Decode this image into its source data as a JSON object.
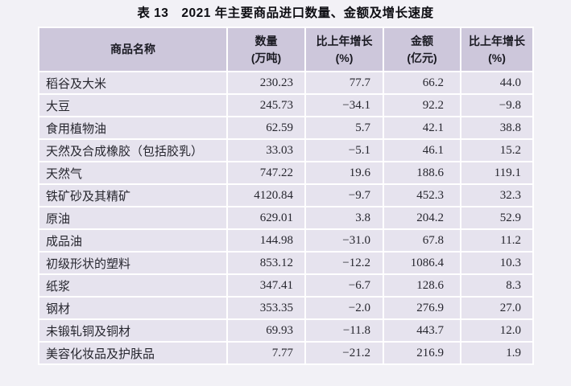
{
  "title": "表 13　2021 年主要商品进口数量、金额及增长速度",
  "colors": {
    "page_bg": "#f2f1f6",
    "header_bg": "#cdc7db",
    "row_bg": "#e6e3ee",
    "separator": "#ffffff",
    "text": "#26262e",
    "header_text": "#1a1a22"
  },
  "table": {
    "columns": [
      {
        "line1": "商品名称",
        "line2": ""
      },
      {
        "line1": "数量",
        "line2": "(万吨)"
      },
      {
        "line1": "比上年增长",
        "line2": "(%)"
      },
      {
        "line1": "金额",
        "line2": "(亿元)"
      },
      {
        "line1": "比上年增长",
        "line2": "(%)"
      }
    ],
    "rows": [
      [
        "稻谷及大米",
        "230.23",
        "77.7",
        "66.2",
        "44.0"
      ],
      [
        "大豆",
        "245.73",
        "−34.1",
        "92.2",
        "−9.8"
      ],
      [
        "食用植物油",
        "62.59",
        "5.7",
        "42.1",
        "38.8"
      ],
      [
        "天然及合成橡胶（包括胶乳）",
        "33.03",
        "−5.1",
        "46.1",
        "15.2"
      ],
      [
        "天然气",
        "747.22",
        "19.6",
        "188.6",
        "119.1"
      ],
      [
        "铁矿砂及其精矿",
        "4120.84",
        "−9.7",
        "452.3",
        "32.3"
      ],
      [
        "原油",
        "629.01",
        "3.8",
        "204.2",
        "52.9"
      ],
      [
        "成品油",
        "144.98",
        "−31.0",
        "67.8",
        "11.2"
      ],
      [
        "初级形状的塑料",
        "853.12",
        "−12.2",
        "1086.4",
        "10.3"
      ],
      [
        "纸浆",
        "347.41",
        "−6.7",
        "128.6",
        "8.3"
      ],
      [
        "钢材",
        "353.35",
        "−2.0",
        "276.9",
        "27.0"
      ],
      [
        "未锻轧铜及铜材",
        "69.93",
        "−11.8",
        "443.7",
        "12.0"
      ],
      [
        "美容化妆品及护肤品",
        "7.77",
        "−21.2",
        "216.9",
        "1.9"
      ]
    ]
  }
}
